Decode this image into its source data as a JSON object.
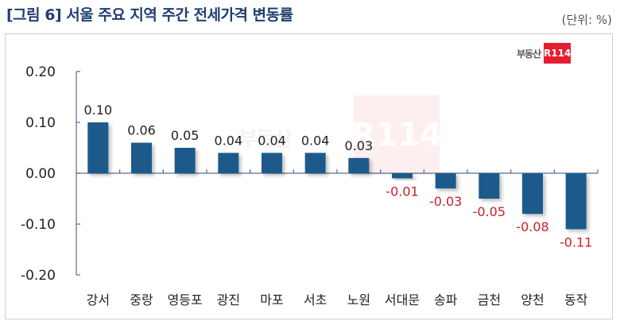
{
  "header": {
    "title": "[그림 6] 서울 주요 지역 주간 전세가격 변동률",
    "unit": "(단위: %)"
  },
  "logo": {
    "text": "부동산",
    "badge": "R114"
  },
  "watermark": {
    "badge": "R114"
  },
  "colors": {
    "bar": "#1f5a8c",
    "positive_label": "#222222",
    "negative_label": "#c8202b",
    "axis": "#5a6d8e",
    "title": "#1f3f6e"
  },
  "chart_data": {
    "type": "bar",
    "title": "[그림 6] 서울 주요 지역 주간 전세가격 변동률",
    "unit": "(단위: %)",
    "xlabel": "",
    "ylabel": "",
    "categories": [
      "강서",
      "중랑",
      "영등포",
      "광진",
      "마포",
      "서초",
      "노원",
      "서대문",
      "송파",
      "금천",
      "양천",
      "동작"
    ],
    "values": [
      0.1,
      0.06,
      0.05,
      0.04,
      0.04,
      0.04,
      0.03,
      -0.01,
      -0.03,
      -0.05,
      -0.08,
      -0.11
    ],
    "value_labels": [
      "0.10",
      "0.06",
      "0.05",
      "0.04",
      "0.04",
      "0.04",
      "0.03",
      "-0.01",
      "-0.03",
      "-0.05",
      "-0.08",
      "-0.11"
    ],
    "ylim": [
      -0.2,
      0.2
    ],
    "yticks": [
      0.2,
      0.1,
      0.0,
      -0.1,
      -0.2
    ],
    "ytick_labels": [
      "0.20",
      "0.10",
      "0.00",
      "-0.10",
      "-0.20"
    ],
    "grid": false,
    "legend": null
  }
}
